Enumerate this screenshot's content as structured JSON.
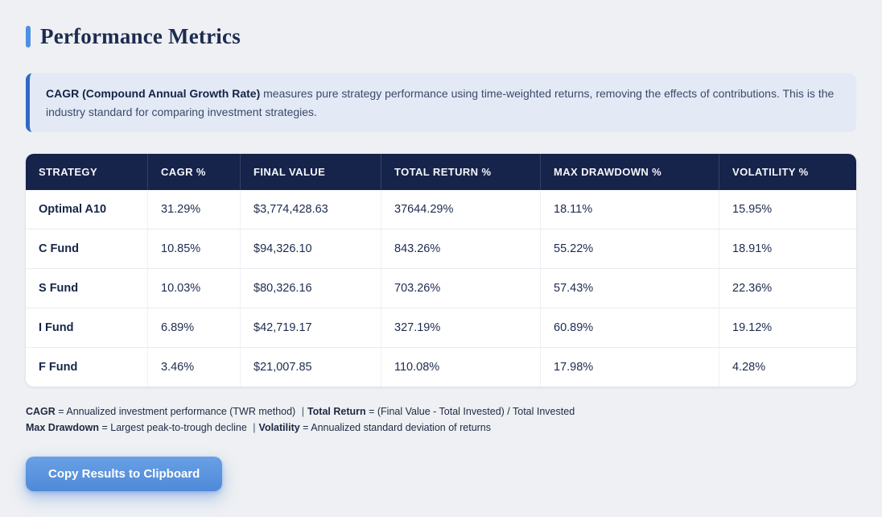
{
  "page": {
    "title": "Performance Metrics"
  },
  "colors": {
    "accent_blue": "#4e8fe3",
    "header_navy": "#16234a",
    "info_border_blue": "#2f68c8",
    "info_bg": "#e3eaf6",
    "button_blue": "#5991dd",
    "page_bg": "#eef0f3"
  },
  "info_box": {
    "term": "CAGR (Compound Annual Growth Rate)",
    "text": " measures pure strategy performance using time-weighted returns, removing the effects of contributions. This is the industry standard for comparing investment strategies."
  },
  "table": {
    "columns": [
      "STRATEGY",
      "CAGR %",
      "FINAL VALUE",
      "TOTAL RETURN %",
      "MAX DRAWDOWN %",
      "VOLATILITY %"
    ],
    "rows": [
      [
        "Optimal A10",
        "31.29%",
        "$3,774,428.63",
        "37644.29%",
        "18.11%",
        "15.95%"
      ],
      [
        "C Fund",
        "10.85%",
        "$94,326.10",
        "843.26%",
        "55.22%",
        "18.91%"
      ],
      [
        "S Fund",
        "10.03%",
        "$80,326.16",
        "703.26%",
        "57.43%",
        "22.36%"
      ],
      [
        "I Fund",
        "6.89%",
        "$42,719.17",
        "327.19%",
        "60.89%",
        "19.12%"
      ],
      [
        "F Fund",
        "3.46%",
        "$21,007.85",
        "110.08%",
        "17.98%",
        "4.28%"
      ]
    ]
  },
  "footnotes": [
    [
      {
        "text": "CAGR",
        "bold": true
      },
      {
        "text": " = Annualized investment performance (TWR method) ",
        "bold": false
      },
      {
        "text": "|",
        "bold": false,
        "sep": true
      },
      {
        "text": "Total Return",
        "bold": true
      },
      {
        "text": " = (Final Value - Total Invested) / Total Invested",
        "bold": false
      }
    ],
    [
      {
        "text": "Max Drawdown",
        "bold": true
      },
      {
        "text": " = Largest peak-to-trough decline ",
        "bold": false
      },
      {
        "text": "|",
        "bold": false,
        "sep": true
      },
      {
        "text": "Volatility",
        "bold": true
      },
      {
        "text": " = Annualized standard deviation of returns",
        "bold": false
      }
    ]
  ],
  "button": {
    "label": "Copy Results to Clipboard"
  }
}
